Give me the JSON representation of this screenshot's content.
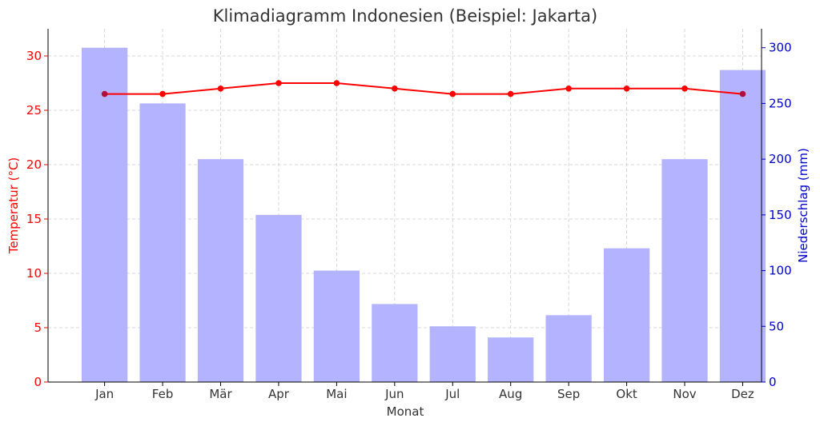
{
  "chart_data": {
    "type": "bar+line",
    "title": "Klimadiagramm Indonesien (Beispiel: Jakarta)",
    "xlabel": "Monat",
    "categories": [
      "Jan",
      "Feb",
      "Mär",
      "Apr",
      "Mai",
      "Jun",
      "Jul",
      "Aug",
      "Sep",
      "Okt",
      "Nov",
      "Dez"
    ],
    "temperature": {
      "axis_label": "Temperatur (°C)",
      "color": "#ff0000",
      "values": [
        26.5,
        26.5,
        27,
        27.5,
        27.5,
        27,
        26.5,
        26.5,
        27,
        27,
        27,
        26.5
      ],
      "ylim": [
        0,
        32.5
      ],
      "ticks": [
        0,
        5,
        10,
        15,
        20,
        25,
        30
      ]
    },
    "precipitation": {
      "axis_label": "Niederschlag (mm)",
      "color": "#0000cc",
      "bar_color": "#b3b3ff",
      "values": [
        300,
        250,
        200,
        150,
        100,
        70,
        50,
        40,
        60,
        120,
        200,
        280
      ],
      "ylim": [
        0,
        317
      ],
      "ticks": [
        0,
        50,
        100,
        150,
        200,
        250,
        300
      ]
    },
    "grid": true
  }
}
